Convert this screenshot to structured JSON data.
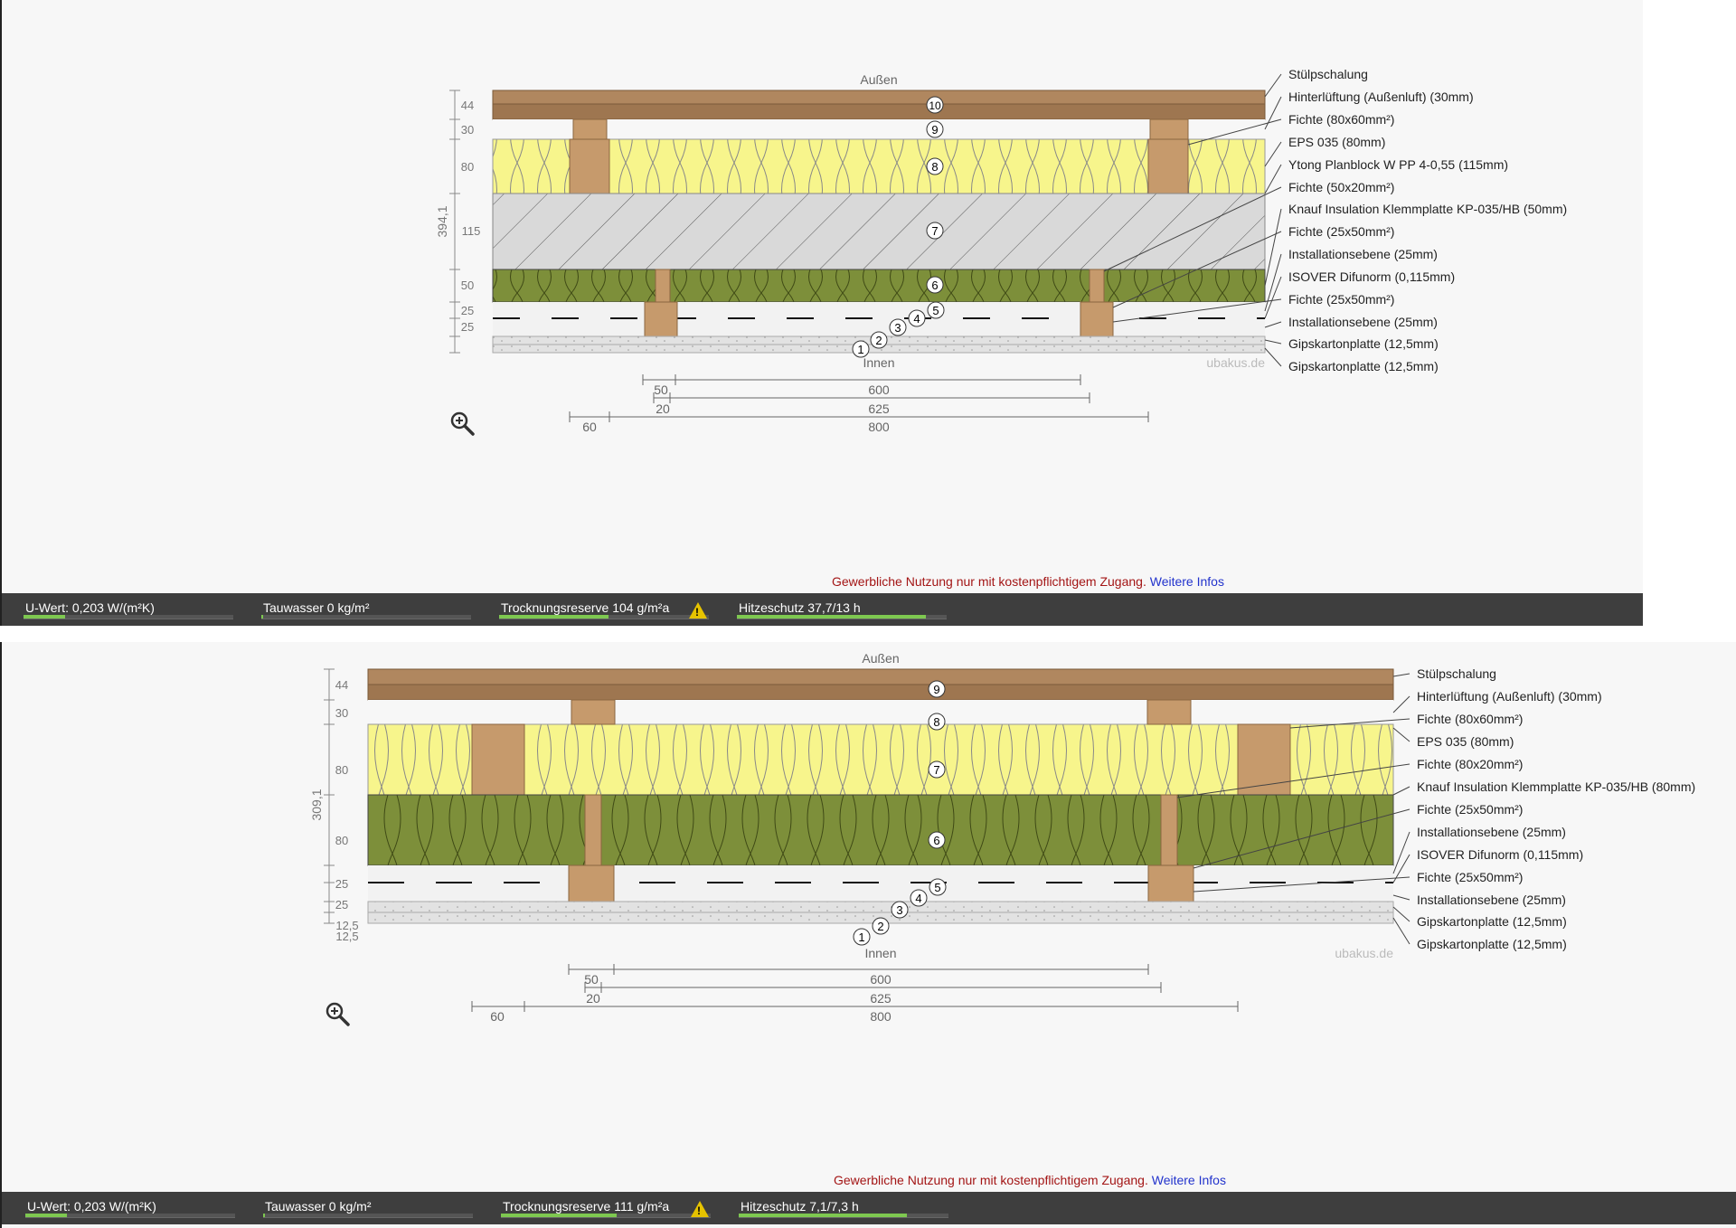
{
  "notice": {
    "text": "Gewerbliche Nutzung nur mit kostenpflichtigem Zugang.",
    "link": "Weitere Infos"
  },
  "colors": {
    "wood": "#b0875f",
    "insulation_yellow": "#f7f58c",
    "insulation_green": "#7d8f3a",
    "masonry": "#d9d9d9",
    "plaster": "#e2e2e2",
    "status_bar": "#3e3e3e",
    "progress": "#7ec850"
  },
  "icons": {
    "zoom": "zoom-in-icon",
    "warning": "warning-icon"
  },
  "panel1": {
    "outside": "Außen",
    "inside": "Innen",
    "watermark": "ubakus.de",
    "total_thickness": "394,1",
    "dimensions": [
      "44",
      "30",
      "80",
      "115",
      "50",
      "25",
      "25"
    ],
    "spacing": {
      "a": "50",
      "b": "600",
      "c": "20",
      "d": "625",
      "e": "60",
      "f": "800"
    },
    "layers": [
      "Stülpschalung",
      "Hinterlüftung (Außenluft) (30mm)",
      "Fichte (80x60mm²)",
      "EPS 035 (80mm)",
      "Ytong Planblock W PP 4-0,55 (115mm)",
      "Fichte (50x20mm²)",
      "Knauf Insulation Klemmplatte KP-035/HB (50mm)",
      "Fichte (25x50mm²)",
      "Installationsebene (25mm)",
      "ISOVER Difunorm (0,115mm)",
      "Fichte (25x50mm²)",
      "Installationsebene (25mm)",
      "Gipskartonplatte (12,5mm)",
      "Gipskartonplatte (12,5mm)"
    ],
    "numbers": [
      "1",
      "2",
      "3",
      "4",
      "5",
      "6",
      "7",
      "8",
      "9",
      "10"
    ],
    "status": {
      "u_value": {
        "label": "U-Wert: 0,203 W/(m²K)",
        "level": 0.2
      },
      "condensation": {
        "label": "Tauwasser 0 kg/m²",
        "level": 0.01
      },
      "drying": {
        "label": "Trocknungsreserve 104 g/m²a",
        "level": 0.52
      },
      "heat": {
        "label": "Hitzeschutz 37,7/13 h",
        "level": 0.9
      }
    }
  },
  "panel2": {
    "outside": "Außen",
    "inside": "Innen",
    "watermark": "ubakus.de",
    "total_thickness": "309,1",
    "dimensions": [
      "44",
      "30",
      "80",
      "80",
      "25",
      "25",
      "12,5",
      "12,5"
    ],
    "spacing": {
      "a": "50",
      "b": "600",
      "c": "20",
      "d": "625",
      "e": "60",
      "f": "800"
    },
    "layers": [
      "Stülpschalung",
      "Hinterlüftung (Außenluft) (30mm)",
      "Fichte (80x60mm²)",
      "EPS 035 (80mm)",
      "Fichte (80x20mm²)",
      "Knauf Insulation Klemmplatte KP-035/HB (80mm)",
      "Fichte (25x50mm²)",
      "Installationsebene (25mm)",
      "ISOVER Difunorm (0,115mm)",
      "Fichte (25x50mm²)",
      "Installationsebene (25mm)",
      "Gipskartonplatte (12,5mm)",
      "Gipskartonplatte (12,5mm)"
    ],
    "numbers": [
      "1",
      "2",
      "3",
      "4",
      "5",
      "6",
      "7",
      "8",
      "9"
    ],
    "status": {
      "u_value": {
        "label": "U-Wert: 0,203 W/(m²K)",
        "level": 0.2
      },
      "condensation": {
        "label": "Tauwasser 0 kg/m²",
        "level": 0.01
      },
      "drying": {
        "label": "Trocknungsreserve 111 g/m²a",
        "level": 0.55
      },
      "heat": {
        "label": "Hitzeschutz 7,1/7,3 h",
        "level": 0.8
      }
    }
  }
}
